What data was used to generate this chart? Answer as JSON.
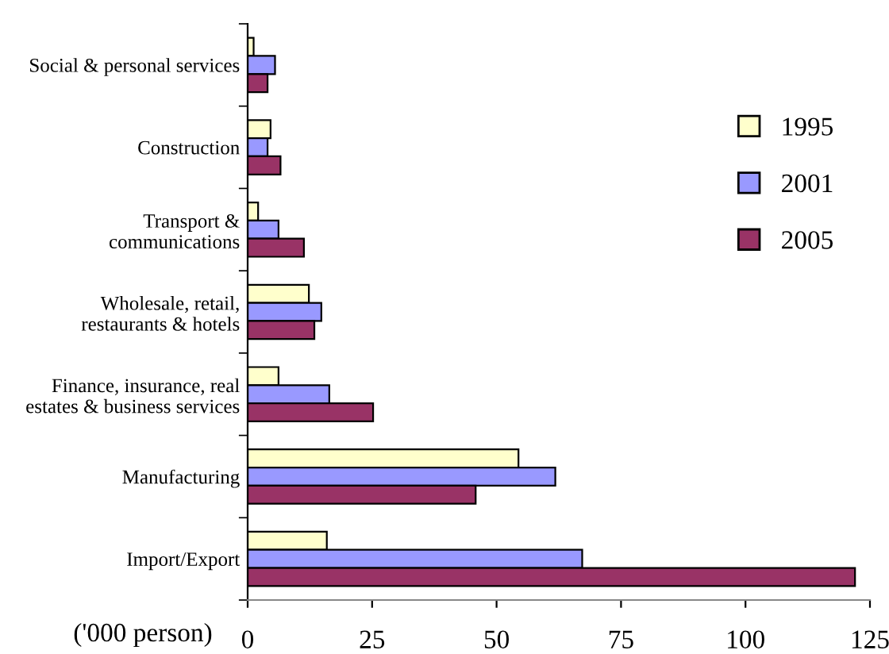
{
  "chart_data": {
    "type": "bar",
    "orientation": "horizontal",
    "xlabel": "('000 person)",
    "categories": [
      "Social & personal services",
      "Construction",
      "Transport &\ncommunications",
      "Wholesale, retail,\nrestaurants & hotels",
      "Finance, insurance, real\nestates & business services",
      "Manufacturing",
      "Import/Export"
    ],
    "series": [
      {
        "name": "1995",
        "color": "#ffffcc",
        "values": [
          1.2,
          4.6,
          2.1,
          12.3,
          6.2,
          54.4,
          15.9
        ]
      },
      {
        "name": "2001",
        "color": "#9999ff",
        "values": [
          5.5,
          4.0,
          6.2,
          14.8,
          16.4,
          61.8,
          67.2
        ]
      },
      {
        "name": "2005",
        "color": "#993366",
        "values": [
          4.0,
          6.6,
          11.3,
          13.4,
          25.2,
          45.8,
          122.0
        ]
      }
    ],
    "xlim": [
      0,
      125
    ],
    "xticks": [
      0,
      25,
      50,
      75,
      100,
      125
    ],
    "grid": false,
    "legend": "right"
  }
}
